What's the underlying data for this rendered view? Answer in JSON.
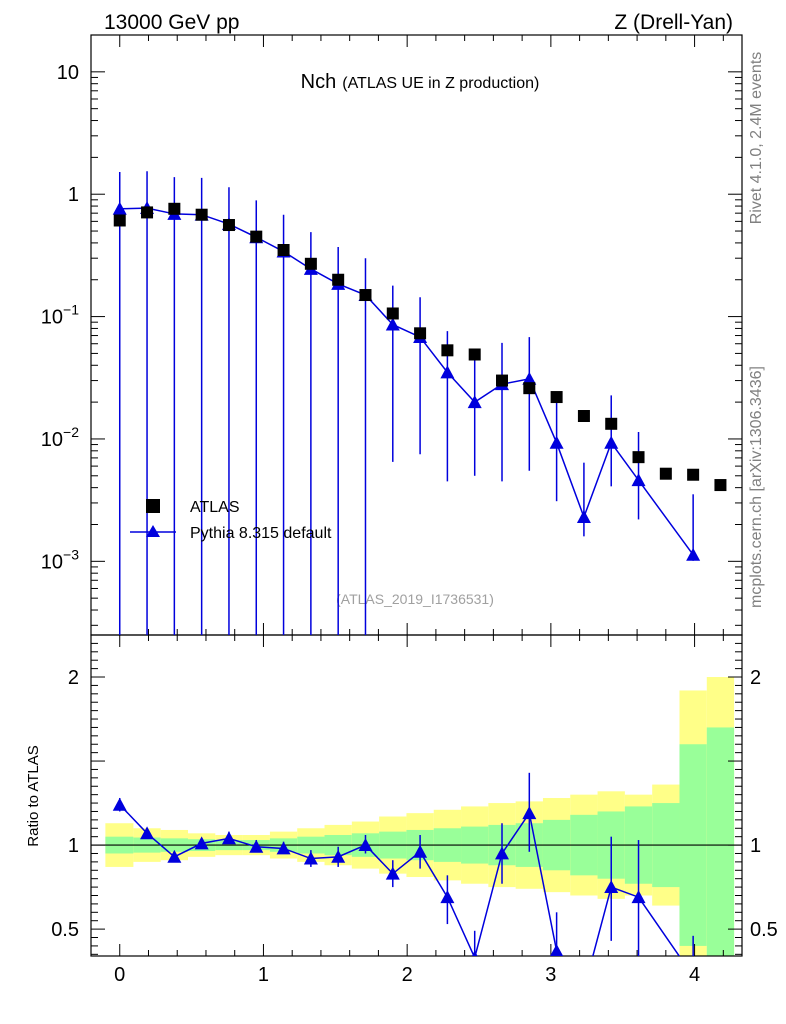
{
  "header": {
    "left": "13000 GeV pp",
    "right": "Z (Drell-Yan)"
  },
  "side_labels": {
    "rivet": "Rivet 4.1.0,  2.4M events",
    "mcplots": "mcplots.cern.ch [arXiv:1306.3436]"
  },
  "chart_data": {
    "type": "scatter",
    "title_main": "Nch",
    "title_sub": "(ATLAS UE in Z production)",
    "analysis_id": "(ATLAS_2019_I1736531)",
    "upper_panel": {
      "yscale": "log",
      "ylim": [
        0.00025,
        20
      ],
      "ytick_labels": [
        {
          "base": "10",
          "exp": "",
          "value": 10
        },
        {
          "base": "1",
          "exp": "",
          "value": 1
        },
        {
          "base": "10",
          "exp": "−1",
          "value": 0.1
        },
        {
          "base": "10",
          "exp": "−2",
          "value": 0.01
        },
        {
          "base": "10",
          "exp": "−3",
          "value": 0.001
        }
      ]
    },
    "lower_panel": {
      "ylabel": "Ratio to ATLAS",
      "ylim": [
        0.34,
        2.25
      ],
      "ytick_labels": [
        {
          "label": "2",
          "value": 2
        },
        {
          "label": "1",
          "value": 1
        },
        {
          "label": "0.5",
          "value": 0.5
        }
      ]
    },
    "xlim": [
      -0.2,
      4.33
    ],
    "xtick_labels": [
      "0",
      "1",
      "2",
      "3",
      "4"
    ],
    "legend": {
      "position": "lower-left",
      "entries": [
        "ATLAS",
        "Pythia 8.315 default"
      ]
    },
    "series": [
      {
        "name": "ATLAS",
        "marker": "square",
        "color": "#000000",
        "x": [
          0.0,
          0.19,
          0.38,
          0.57,
          0.76,
          0.95,
          1.14,
          1.33,
          1.52,
          1.71,
          1.9,
          2.09,
          2.28,
          2.47,
          2.66,
          2.85,
          3.04,
          3.23,
          3.42,
          3.61,
          3.8,
          3.99,
          4.18
        ],
        "y": [
          0.61,
          0.71,
          0.76,
          0.68,
          0.56,
          0.45,
          0.35,
          0.27,
          0.2,
          0.15,
          0.106,
          0.073,
          0.053,
          0.049,
          0.03,
          0.026,
          0.022,
          0.0154,
          0.0133,
          0.0071,
          0.0052,
          0.0051,
          0.0042
        ]
      },
      {
        "name": "Pythia 8.315 default",
        "marker": "triangle",
        "color": "#0000dd",
        "x": [
          0.0,
          0.19,
          0.38,
          0.57,
          0.76,
          0.95,
          1.14,
          1.33,
          1.52,
          1.71,
          1.9,
          2.09,
          2.28,
          2.47,
          2.66,
          2.85,
          3.04,
          3.23,
          3.42,
          3.61,
          3.99
        ],
        "y": [
          0.76,
          0.77,
          0.69,
          0.68,
          0.57,
          0.445,
          0.34,
          0.245,
          0.185,
          0.15,
          0.086,
          0.068,
          0.035,
          0.02,
          0.028,
          0.031,
          0.0093,
          0.0023,
          0.0093,
          0.0046,
          0.00113
        ],
        "yerr_low": [
          0.76,
          0.77,
          0.69,
          0.68,
          0.57,
          0.445,
          0.34,
          0.245,
          0.185,
          0.15,
          0.0795,
          0.0605,
          0.0305,
          0.015,
          0.0235,
          0.0255,
          0.0062,
          0.0007,
          0.0052,
          0.0024,
          0.00012
        ],
        "yerr_high": [
          0.76,
          0.77,
          0.69,
          0.68,
          0.57,
          0.445,
          0.34,
          0.245,
          0.185,
          0.15,
          0.093,
          0.076,
          0.041,
          0.025,
          0.033,
          0.037,
          0.0125,
          0.0041,
          0.0134,
          0.0068,
          0.0024
        ],
        "ratio": [
          1.24,
          1.07,
          0.93,
          1.01,
          1.04,
          0.99,
          0.98,
          0.92,
          0.93,
          1.0,
          0.83,
          0.96,
          0.69,
          0.33,
          0.95,
          1.19,
          0.37,
          0.14,
          0.75,
          0.69,
          0.22
        ],
        "ratio_err_low": [
          1.2,
          1.04,
          0.9,
          0.98,
          1.01,
          0.96,
          0.95,
          0.87,
          0.87,
          0.95,
          0.75,
          0.86,
          0.53,
          0.2,
          0.77,
          0.96,
          0.2,
          0.05,
          0.43,
          0.33,
          0.02
        ],
        "ratio_err_high": [
          1.28,
          1.1,
          0.96,
          1.04,
          1.08,
          1.03,
          1.02,
          0.97,
          0.99,
          1.06,
          0.91,
          1.06,
          0.82,
          0.49,
          1.13,
          1.43,
          0.6,
          0.28,
          1.05,
          1.03,
          0.46
        ]
      }
    ],
    "ratio_bands": {
      "edges": [
        -0.1,
        0.095,
        0.285,
        0.475,
        0.665,
        0.855,
        1.045,
        1.235,
        1.425,
        1.615,
        1.805,
        1.995,
        2.185,
        2.375,
        2.565,
        2.755,
        2.945,
        3.135,
        3.325,
        3.515,
        3.705,
        3.895,
        4.085,
        4.275
      ],
      "green_half_width": [
        0.05,
        0.045,
        0.04,
        0.035,
        0.03,
        0.03,
        0.04,
        0.05,
        0.06,
        0.07,
        0.08,
        0.09,
        0.1,
        0.11,
        0.12,
        0.13,
        0.15,
        0.18,
        0.2,
        0.23,
        0.25,
        0.6,
        0.7
      ],
      "yellow_half_width": [
        0.13,
        0.1,
        0.09,
        0.07,
        0.06,
        0.06,
        0.08,
        0.1,
        0.12,
        0.14,
        0.17,
        0.19,
        0.21,
        0.23,
        0.25,
        0.26,
        0.28,
        0.3,
        0.32,
        0.3,
        0.36,
        0.92,
        1.0
      ],
      "green_color": "#99ff99",
      "yellow_color": "#ffff88"
    }
  }
}
